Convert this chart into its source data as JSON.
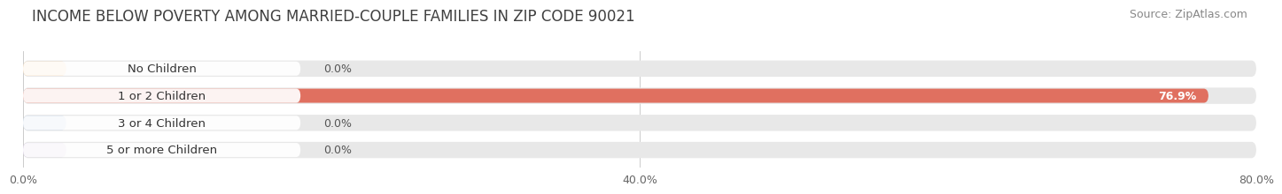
{
  "title": "INCOME BELOW POVERTY AMONG MARRIED-COUPLE FAMILIES IN ZIP CODE 90021",
  "source": "Source: ZipAtlas.com",
  "categories": [
    "No Children",
    "1 or 2 Children",
    "3 or 4 Children",
    "5 or more Children"
  ],
  "values": [
    0.0,
    76.9,
    0.0,
    0.0
  ],
  "bar_colors": [
    "#f5c48a",
    "#e07060",
    "#a8c0dc",
    "#c4aed8"
  ],
  "track_color": "#e8e8e8",
  "label_bg_color": "#f5f5f5",
  "xlim": [
    0,
    80
  ],
  "xticks": [
    0,
    40,
    80
  ],
  "xticklabels": [
    "0.0%",
    "40.0%",
    "80.0%"
  ],
  "background_color": "#ffffff",
  "title_fontsize": 12,
  "source_fontsize": 9,
  "label_fontsize": 9.5,
  "value_fontsize": 9
}
